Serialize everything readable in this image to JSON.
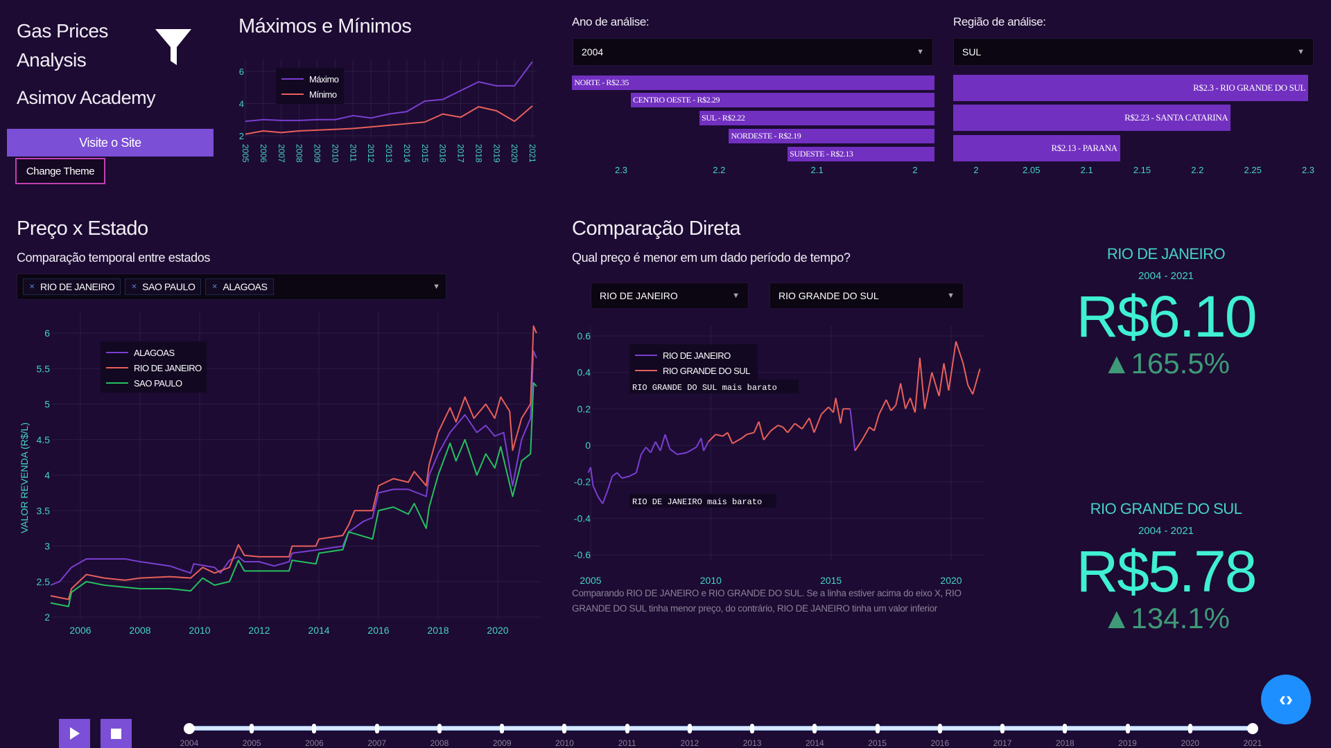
{
  "sidebar": {
    "title_line1": "Gas Prices",
    "title_line2": "Analysis",
    "brand": "Asimov Academy",
    "visit_button": "Visite o Site",
    "theme_button": "Change Theme",
    "filter_icon": "funnel-icon"
  },
  "maxmin": {
    "title": "Máximos e Mínimos"
  },
  "year_filter": {
    "label": "Ano de análise:",
    "value": "2004"
  },
  "region_filter": {
    "label": "Região de análise:",
    "value": "SUL"
  },
  "preco_estado": {
    "title": "Preço x Estado",
    "subtitle": "Comparação temporal entre estados",
    "selected": [
      "RIO DE JANEIRO",
      "SAO PAULO",
      "ALAGOAS"
    ]
  },
  "comparacao": {
    "title": "Comparação Direta",
    "subtitle": "Qual preço é menor em um dado período de tempo?",
    "state1": "RIO DE JANEIRO",
    "state2": "RIO GRANDE DO SUL",
    "note": "Comparando RIO DE JANEIRO e RIO GRANDE DO SUL. Se a linha estiver acima do eixo X, RIO GRANDE DO SUL tinha menor preço, do contrário, RIO DE JANEIRO tinha um valor inferior"
  },
  "stats": [
    {
      "state": "RIO DE JANEIRO",
      "period": "2004 - 2021",
      "price": "R$6.10",
      "change": "▲165.5%"
    },
    {
      "state": "RIO GRANDE DO SUL",
      "period": "2004 - 2021",
      "price": "R$5.78",
      "change": "▲134.1%"
    }
  ],
  "player": {
    "play_icon": "play-icon",
    "stop_icon": "stop-icon",
    "code_icon": "code-icon",
    "years": [
      "2004",
      "2005",
      "2006",
      "2007",
      "2008",
      "2009",
      "2010",
      "2011",
      "2012",
      "2013",
      "2014",
      "2015",
      "2016",
      "2017",
      "2018",
      "2019",
      "2020",
      "2021"
    ],
    "selected": "2021"
  },
  "colors": {
    "background": "#1d0b33",
    "accent": "#7b4fd6",
    "bar": "#7230c0",
    "teal": "#45d3c8",
    "purple": "#7a3fd0",
    "red": "#e8605a",
    "green": "#25c060",
    "blue_button": "#1e8fff"
  },
  "chart_data": [
    {
      "type": "line",
      "title": "Máximos e Mínimos",
      "x": [
        2005,
        2006,
        2007,
        2008,
        2009,
        2010,
        2011,
        2012,
        2013,
        2014,
        2015,
        2016,
        2017,
        2018,
        2019,
        2020,
        2021
      ],
      "ylim": [
        2,
        6.8
      ],
      "yticks": [
        2,
        4,
        6
      ],
      "grid": true,
      "legend": "top-left",
      "series": [
        {
          "name": "Máximo",
          "values": [
            2.9,
            3.0,
            2.95,
            2.95,
            3.0,
            3.0,
            3.25,
            3.1,
            3.35,
            3.5,
            4.15,
            4.25,
            4.8,
            5.35,
            5.1,
            5.1,
            6.6
          ]
        },
        {
          "name": "Mínimo",
          "values": [
            2.1,
            2.3,
            2.2,
            2.3,
            2.35,
            2.4,
            2.45,
            2.55,
            2.65,
            2.75,
            2.85,
            3.35,
            3.15,
            3.8,
            3.55,
            2.9,
            3.85
          ]
        }
      ]
    },
    {
      "type": "bar",
      "orientation": "horizontal",
      "xlim": [
        2.35,
        1.98
      ],
      "xticks": [
        "2.3",
        "2.2",
        "2.1",
        "2"
      ],
      "labels": [
        "NORTE - R$2.35",
        "CENTRO OESTE - R$2.29",
        "SUL - R$2.22",
        "NORDESTE - R$2.19",
        "SUDESTE - R$2.13"
      ],
      "values": [
        2.35,
        2.29,
        2.22,
        2.19,
        2.13
      ]
    },
    {
      "type": "bar",
      "orientation": "horizontal",
      "xlim": [
        1.98,
        2.3
      ],
      "xticks": [
        "2",
        "2.05",
        "2.1",
        "2.15",
        "2.2",
        "2.25",
        "2.3"
      ],
      "labels": [
        "R$2.3 - RIO GRANDE DO SUL",
        "R$2.23 - SANTA CATARINA",
        "R$2.13 - PARANA"
      ],
      "values": [
        2.3,
        2.23,
        2.13
      ]
    },
    {
      "type": "line",
      "ylabel": "VALOR REVENDA (R$/L)",
      "xlim": [
        2005,
        2021.4
      ],
      "ylim": [
        2,
        6.2
      ],
      "xticks": [
        "2006",
        "2008",
        "2010",
        "2012",
        "2014",
        "2016",
        "2018",
        "2020"
      ],
      "yticks": [
        "2",
        "2.5",
        "3",
        "3.5",
        "4",
        "4.5",
        "5",
        "5.5",
        "6"
      ],
      "grid": true,
      "legend": "top-left",
      "series": [
        {
          "name": "ALAGOAS",
          "x": [
            2005,
            2005.3,
            2005.7,
            2006.2,
            2007.5,
            2008,
            2009,
            2009.7,
            2009.8,
            2010.5,
            2010.7,
            2011,
            2011.3,
            2011.5,
            2012,
            2012.5,
            2013,
            2013.1,
            2014,
            2014.8,
            2015,
            2015.5,
            2015.8,
            2016,
            2016.5,
            2017,
            2017.6,
            2017.7,
            2018,
            2018.4,
            2018.9,
            2019.3,
            2019.6,
            2019.9,
            2020.2,
            2020.5,
            2020.8,
            2021.1,
            2021.2,
            2021.3
          ],
          "y": [
            2.45,
            2.5,
            2.7,
            2.82,
            2.82,
            2.78,
            2.72,
            2.62,
            2.75,
            2.7,
            2.62,
            2.8,
            2.85,
            2.78,
            2.78,
            2.72,
            2.78,
            2.9,
            2.95,
            3.0,
            3.2,
            3.35,
            3.4,
            3.75,
            3.8,
            3.8,
            3.7,
            4.0,
            4.3,
            4.6,
            4.85,
            4.6,
            4.7,
            4.55,
            4.6,
            3.85,
            4.5,
            4.8,
            5.75,
            5.65
          ]
        },
        {
          "name": "RIO DE JANEIRO",
          "x": [
            2005,
            2005.6,
            2005.7,
            2006.2,
            2006.8,
            2007.5,
            2008,
            2009,
            2009.7,
            2010.1,
            2010.5,
            2011,
            2011.3,
            2011.5,
            2012,
            2013,
            2013.1,
            2013.9,
            2014,
            2014.8,
            2015,
            2015.2,
            2015.8,
            2016,
            2016.5,
            2017,
            2017.2,
            2017.6,
            2017.7,
            2018,
            2018.4,
            2018.6,
            2018.9,
            2019.2,
            2019.6,
            2019.9,
            2020.1,
            2020.4,
            2020.5,
            2020.8,
            2021.1,
            2021.2,
            2021.3
          ],
          "y": [
            2.3,
            2.25,
            2.4,
            2.6,
            2.55,
            2.52,
            2.55,
            2.57,
            2.55,
            2.7,
            2.62,
            2.7,
            3.02,
            2.87,
            2.85,
            2.85,
            3.0,
            3.0,
            3.1,
            3.15,
            3.3,
            3.5,
            3.5,
            3.85,
            3.95,
            3.9,
            4.05,
            3.85,
            4.15,
            4.6,
            4.95,
            4.75,
            5.1,
            4.8,
            5.0,
            4.8,
            5.1,
            4.9,
            4.35,
            4.8,
            5.0,
            6.1,
            6.0
          ]
        },
        {
          "name": "SAO PAULO",
          "x": [
            2005,
            2005.6,
            2005.7,
            2006.2,
            2006.8,
            2008,
            2009,
            2009.7,
            2010.1,
            2010.5,
            2011,
            2011.3,
            2011.5,
            2012,
            2013,
            2013.1,
            2013.9,
            2014,
            2014.8,
            2015,
            2015.8,
            2016,
            2016.5,
            2017,
            2017.2,
            2017.6,
            2017.7,
            2018,
            2018.4,
            2018.6,
            2018.9,
            2019.3,
            2019.6,
            2019.9,
            2020.1,
            2020.5,
            2020.8,
            2021.1,
            2021.2,
            2021.3
          ],
          "y": [
            2.2,
            2.15,
            2.35,
            2.5,
            2.45,
            2.4,
            2.4,
            2.37,
            2.55,
            2.45,
            2.5,
            2.8,
            2.65,
            2.65,
            2.65,
            2.8,
            2.75,
            2.9,
            2.95,
            3.2,
            3.1,
            3.5,
            3.55,
            3.45,
            3.6,
            3.25,
            3.55,
            4.0,
            4.45,
            4.2,
            4.5,
            4.0,
            4.3,
            4.1,
            4.4,
            3.7,
            4.2,
            4.3,
            5.3,
            5.25
          ]
        }
      ]
    },
    {
      "type": "line",
      "xlim": [
        2004.9,
        2021.3
      ],
      "ylim": [
        -0.65,
        0.65
      ],
      "xticks": [
        "2005",
        "2010",
        "2015",
        "2020"
      ],
      "yticks": [
        "0.6",
        "0.4",
        "0.2",
        "0",
        "-0.2",
        "-0.4",
        "-0.6"
      ],
      "grid": true,
      "legend": "top-left",
      "annotations": [
        "RIO GRANDE DO SUL mais barato",
        "RIO DE JANEIRO mais barato"
      ],
      "series_names": [
        "RIO DE JANEIRO",
        "RIO GRANDE DO SUL"
      ],
      "x": [
        2004.9,
        2005.0,
        2005.1,
        2005.3,
        2005.5,
        2005.7,
        2005.9,
        2006.1,
        2006.3,
        2006.6,
        2006.9,
        2007.1,
        2007.3,
        2007.5,
        2007.7,
        2007.9,
        2008.1,
        2008.3,
        2008.6,
        2009,
        2009.4,
        2009.6,
        2009.7,
        2009.9,
        2010.2,
        2010.5,
        2010.7,
        2010.9,
        2011.3,
        2011.5,
        2011.8,
        2012,
        2012.2,
        2012.5,
        2012.8,
        2013,
        2013.2,
        2013.5,
        2013.8,
        2014.1,
        2014.3,
        2014.6,
        2014.9,
        2015.1,
        2015.2,
        2015.4,
        2015.5,
        2015.8,
        2016.0,
        2016.3,
        2016.6,
        2016.8,
        2017.0,
        2017.3,
        2017.5,
        2017.7,
        2017.9,
        2018.1,
        2018.3,
        2018.5,
        2018.7,
        2018.9,
        2019.2,
        2019.5,
        2019.7,
        2019.9,
        2020.2,
        2020.5,
        2020.7,
        2020.9,
        2021.2
      ],
      "y": [
        -0.15,
        -0.12,
        -0.22,
        -0.28,
        -0.32,
        -0.25,
        -0.17,
        -0.15,
        -0.18,
        -0.17,
        -0.15,
        -0.05,
        -0.01,
        -0.04,
        0.02,
        -0.03,
        0.06,
        -0.02,
        -0.05,
        -0.04,
        -0.01,
        0.04,
        -0.03,
        0.02,
        0.06,
        0.05,
        0.07,
        0.01,
        0.04,
        0.06,
        0.07,
        0.13,
        0.03,
        0.08,
        0.11,
        0.1,
        0.07,
        0.12,
        0.09,
        0.15,
        0.07,
        0.17,
        0.21,
        0.18,
        0.26,
        0.12,
        0.2,
        0.2,
        -0.03,
        0.03,
        0.1,
        0.08,
        0.17,
        0.25,
        0.19,
        0.22,
        0.34,
        0.2,
        0.26,
        0.18,
        0.48,
        0.2,
        0.4,
        0.27,
        0.45,
        0.3,
        0.57,
        0.45,
        0.33,
        0.28,
        0.42
      ]
    }
  ]
}
